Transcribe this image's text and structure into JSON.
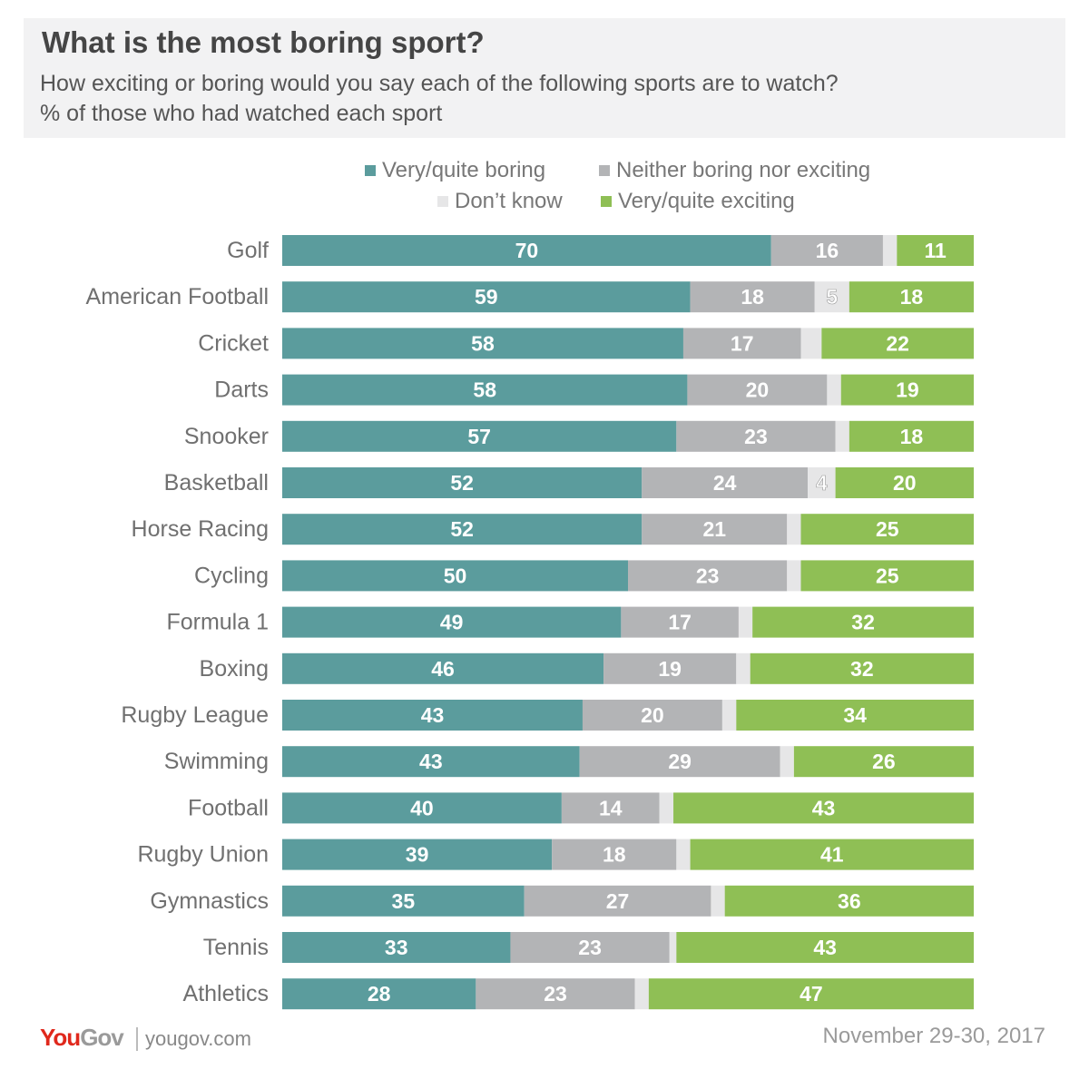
{
  "colors": {
    "boring": "#5b9c9d",
    "neither": "#b3b4b6",
    "dont_know": "#e6e6e7",
    "exciting": "#8fbf55"
  },
  "chart_data": {
    "type": "bar",
    "orientation": "horizontal",
    "stacked": true,
    "title": "What is the most boring sport?",
    "subtitle": "How exciting or boring would you say each of the following sports are to watch?",
    "subtitle2": "% of those who had watched each sport",
    "categories": [
      "Golf",
      "American Football",
      "Cricket",
      "Darts",
      "Snooker",
      "Basketball",
      "Horse Racing",
      "Cycling",
      "Formula 1",
      "Boxing",
      "Rugby League",
      "Swimming",
      "Football",
      "Rugby Union",
      "Gymnastics",
      "Tennis",
      "Athletics"
    ],
    "series": [
      {
        "name": "Very/quite boring",
        "key": "boring",
        "values": [
          70,
          59,
          58,
          58,
          57,
          52,
          52,
          50,
          49,
          46,
          43,
          43,
          40,
          39,
          35,
          33,
          28
        ]
      },
      {
        "name": "Neither boring nor exciting",
        "key": "neither",
        "values": [
          16,
          18,
          17,
          20,
          23,
          24,
          21,
          23,
          17,
          19,
          20,
          29,
          14,
          18,
          27,
          23,
          23
        ]
      },
      {
        "name": "Don't know",
        "key": "dont_know",
        "values": [
          2,
          5,
          3,
          2,
          2,
          4,
          2,
          2,
          2,
          2,
          2,
          2,
          2,
          2,
          2,
          1,
          2
        ]
      },
      {
        "name": "Very/quite exciting",
        "key": "exciting",
        "values": [
          11,
          18,
          22,
          19,
          18,
          20,
          25,
          25,
          32,
          32,
          34,
          26,
          43,
          41,
          36,
          43,
          47
        ]
      }
    ],
    "shown_labels": {
      "dont_know": [
        false,
        true,
        false,
        false,
        false,
        true,
        false,
        false,
        false,
        false,
        false,
        false,
        false,
        false,
        false,
        false,
        false
      ]
    },
    "xlim": [
      0,
      100
    ],
    "legend": "top"
  },
  "legend_labels": {
    "boring": "Very/quite boring",
    "neither": "Neither boring nor exciting",
    "dont_know": "Don’t know",
    "exciting": "Very/quite exciting"
  },
  "footer": {
    "logo_you": "You",
    "logo_gov": "Gov",
    "site": "yougov.com",
    "date": "November 29-30, 2017"
  }
}
